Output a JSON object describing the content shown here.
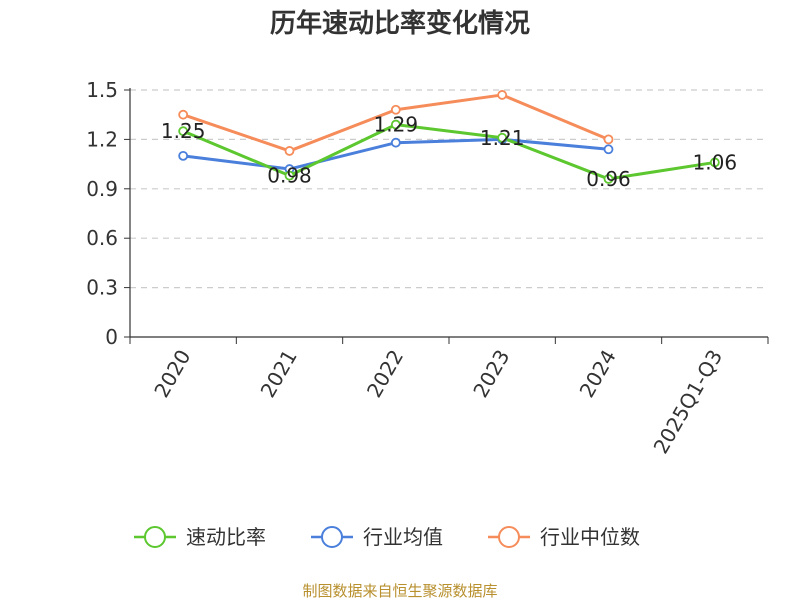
{
  "chart_data": {
    "type": "line",
    "title": "历年速动比率变化情况",
    "categories": [
      "2020",
      "2021",
      "2022",
      "2023",
      "2024",
      "2025Q1-Q3"
    ],
    "ylim": [
      0,
      1.5
    ],
    "yticks": [
      "0",
      "0.3",
      "0.6",
      "0.9",
      "1.2",
      "1.5"
    ],
    "grid": true,
    "legend_position": "bottom",
    "series": [
      {
        "name": "速动比率",
        "color": "#5cc72e",
        "values": [
          1.25,
          0.98,
          1.29,
          1.21,
          0.96,
          1.06
        ],
        "labels": [
          "1.25",
          "0.98",
          "1.29",
          "1.21",
          "0.96",
          "1.06"
        ]
      },
      {
        "name": "行业均值",
        "color": "#4a7fdb",
        "values": [
          1.1,
          1.02,
          1.18,
          1.2,
          1.14,
          null
        ]
      },
      {
        "name": "行业中位数",
        "color": "#f58c5a",
        "values": [
          1.35,
          1.13,
          1.38,
          1.47,
          1.2,
          null
        ]
      }
    ]
  },
  "footer": {
    "source": "制图数据来自恒生聚源数据库"
  }
}
